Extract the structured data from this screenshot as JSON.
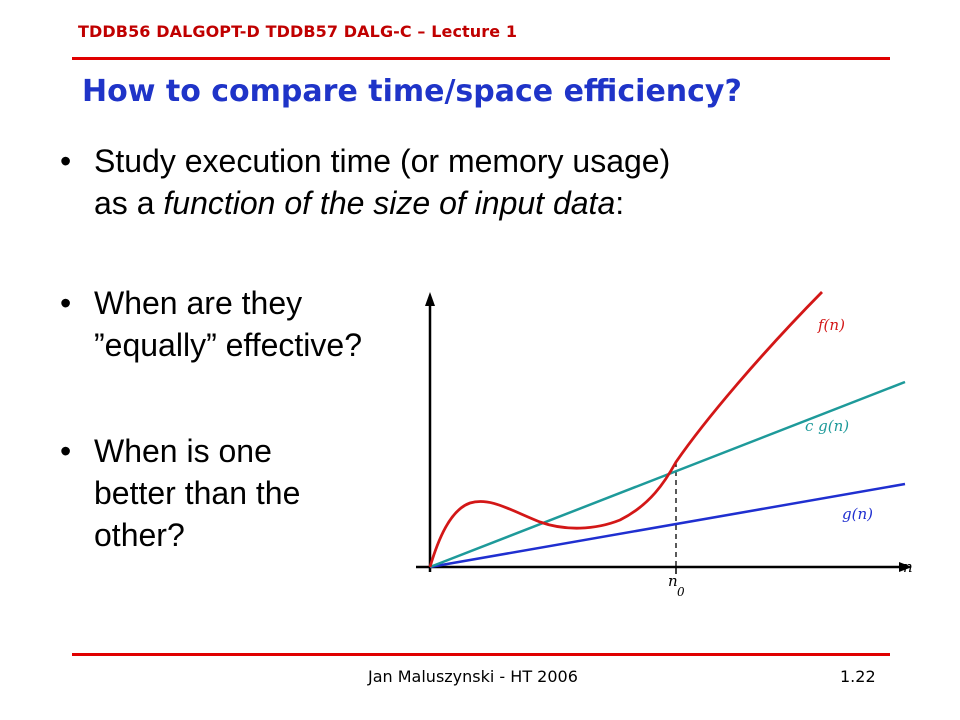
{
  "header": {
    "course": "TDDB56  DALGOPT-D  TDDB57 DALG-C – Lecture 1"
  },
  "title": "How to compare time/space efficiency?",
  "bullets": [
    {
      "marker": "•",
      "lines": [
        {
          "text": "Study execution time (or memory usage)"
        },
        {
          "pre": "as a ",
          "em": "function of the size of input data",
          "post": ":"
        }
      ]
    },
    {
      "marker": "•",
      "lines": [
        {
          "text": "When are they"
        },
        {
          "text": "”equally”  effective?"
        }
      ]
    },
    {
      "marker": "•",
      "lines": [
        {
          "text": "When is one"
        },
        {
          "text": "better than the"
        },
        {
          "text": "other?"
        }
      ]
    }
  ],
  "graph": {
    "curves": [
      {
        "label": "f(n)",
        "color": "#d31717"
      },
      {
        "label": "c g(n)",
        "color": "#1e9a9a"
      },
      {
        "label": "g(n)",
        "color": "#1f2fd0"
      }
    ],
    "x_axis_label": "n",
    "marker_label": "n",
    "marker_subscript": "0",
    "axis_color": "#000000"
  },
  "footer": {
    "author": "Jan Maluszynski - HT 2006",
    "page": "1.22"
  }
}
